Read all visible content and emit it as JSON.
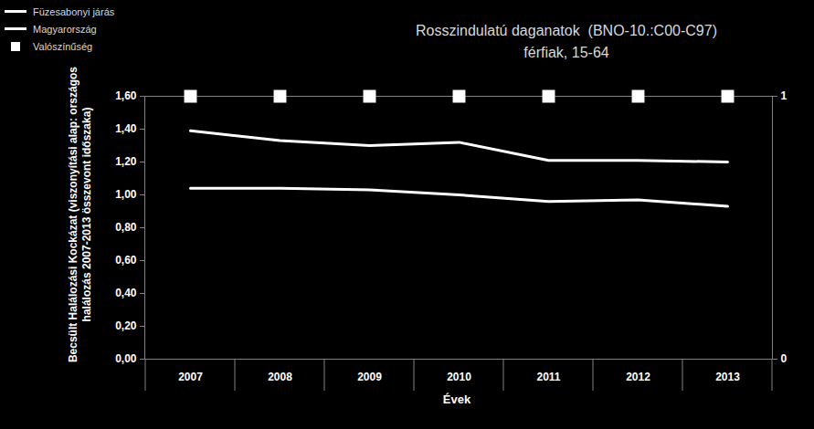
{
  "chart_data": {
    "type": "line",
    "title": "Rosszindulatú daganatok  (BNO-10.:C00-C97)",
    "subtitle": "férfiak, 15-64",
    "x_label": "Évek",
    "y_label": "Becsült Halálozási Kockázat (viszonyítási alap: országos halálozás 2007-2013 összevont időszaka)",
    "categories": [
      "2007",
      "2008",
      "2009",
      "2010",
      "2011",
      "2012",
      "2013"
    ],
    "series": [
      {
        "name": "Füzesabonyi járás",
        "color": "#ffffff",
        "line_style": "solid",
        "values": [
          1.39,
          1.33,
          1.3,
          1.32,
          1.21,
          1.21,
          1.2
        ]
      },
      {
        "name": "Magyarország",
        "color": "#ffffff",
        "line_style": "solid",
        "values": [
          1.04,
          1.04,
          1.03,
          1.0,
          0.96,
          0.97,
          0.93
        ]
      },
      {
        "name": "Valószínűség",
        "color": "#ffffff",
        "type": "scatter",
        "marker": "square",
        "axis": "y2",
        "values": [
          1,
          1,
          1,
          1,
          1,
          1,
          1
        ]
      }
    ],
    "ylim": [
      0,
      1.6
    ],
    "yticks": [
      {
        "value": 0,
        "label": "0,00"
      },
      {
        "value": 0.2,
        "label": "0,20"
      },
      {
        "value": 0.4,
        "label": "0,40"
      },
      {
        "value": 0.6,
        "label": "0,60"
      },
      {
        "value": 0.8,
        "label": "0,80"
      },
      {
        "value": 1.0,
        "label": "1,00"
      },
      {
        "value": 1.2,
        "label": "1,20"
      },
      {
        "value": 1.4,
        "label": "1,40"
      },
      {
        "value": 1.6,
        "label": "1,60"
      }
    ],
    "y2lim": [
      0,
      1
    ],
    "y2ticks": [
      0,
      1
    ],
    "grid": false,
    "legend": "top-left"
  }
}
